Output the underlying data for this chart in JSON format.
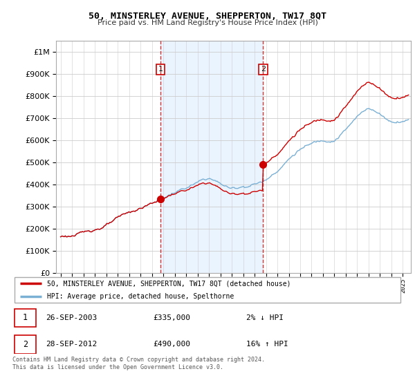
{
  "title": "50, MINSTERLEY AVENUE, SHEPPERTON, TW17 8QT",
  "subtitle": "Price paid vs. HM Land Registry's House Price Index (HPI)",
  "legend_line1": "50, MINSTERLEY AVENUE, SHEPPERTON, TW17 8QT (detached house)",
  "legend_line2": "HPI: Average price, detached house, Spelthorne",
  "transaction1_date": "26-SEP-2003",
  "transaction1_price": 335000,
  "transaction1_note": "2% ↓ HPI",
  "transaction2_date": "28-SEP-2012",
  "transaction2_price": 490000,
  "transaction2_note": "16% ↑ HPI",
  "footnote": "Contains HM Land Registry data © Crown copyright and database right 2024.\nThis data is licensed under the Open Government Licence v3.0.",
  "line_color_red": "#cc0000",
  "line_color_blue": "#7ab0d4",
  "vline_color": "#cc0000",
  "shade_color": "#ddeeff",
  "background_color": "#ffffff",
  "grid_color": "#cccccc",
  "ylim": [
    0,
    1050000
  ],
  "yticks": [
    0,
    100000,
    200000,
    300000,
    400000,
    500000,
    600000,
    700000,
    800000,
    900000,
    1000000
  ],
  "t1_year": 2003.75,
  "t2_year": 2012.75,
  "start_year": 1995,
  "end_year": 2025
}
